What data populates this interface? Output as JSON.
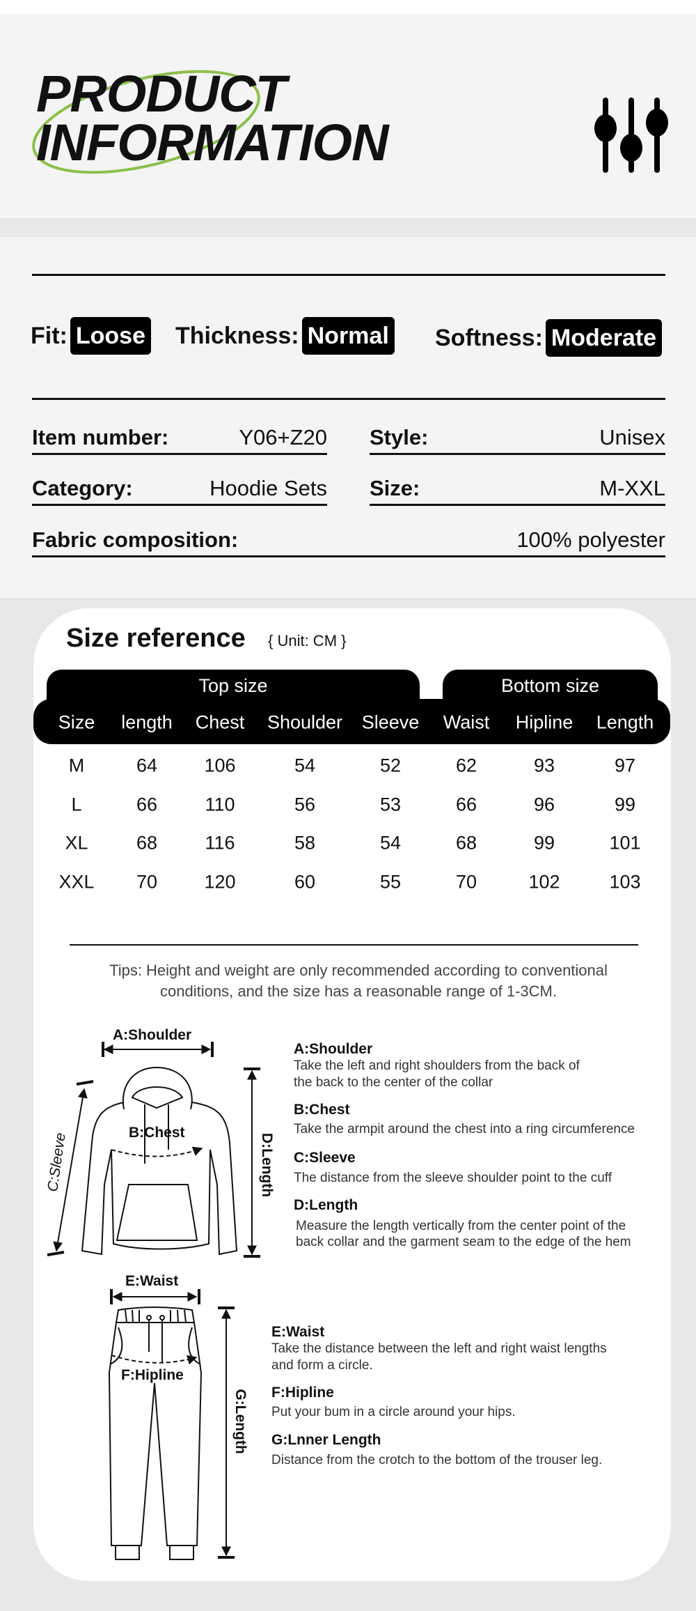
{
  "header": {
    "title_line1": "PRODUCT",
    "title_line2": "INFORMATION",
    "accent_color": "#8cbf4a",
    "icon": "sliders-icon"
  },
  "attributes": [
    {
      "label": "Fit:",
      "value": "Loose"
    },
    {
      "label": "Thickness:",
      "value": "Normal"
    },
    {
      "label": "Softness:",
      "value": "Moderate"
    }
  ],
  "details": {
    "item_number": {
      "label": "Item number:",
      "value": "Y06+Z20"
    },
    "style": {
      "label": "Style:",
      "value": "Unisex"
    },
    "category": {
      "label": "Category:",
      "value": "Hoodie Sets"
    },
    "size": {
      "label": "Size:",
      "value": "M-XXL"
    },
    "fabric": {
      "label": "Fabric composition:",
      "value": "100% polyester"
    }
  },
  "size_reference": {
    "title": "Size reference",
    "unit": "{ Unit: CM }",
    "top_group": "Top size",
    "bottom_group": "Bottom size",
    "columns": [
      "Size",
      "length",
      "Chest",
      "Shoulder",
      "Sleeve",
      "Waist",
      "Hipline",
      "Length"
    ],
    "rows": [
      [
        "M",
        "64",
        "106",
        "54",
        "52",
        "62",
        "93",
        "97"
      ],
      [
        "L",
        "66",
        "110",
        "56",
        "53",
        "66",
        "96",
        "99"
      ],
      [
        "XL",
        "68",
        "116",
        "58",
        "54",
        "68",
        "99",
        "101"
      ],
      [
        "XXL",
        "70",
        "120",
        "60",
        "55",
        "70",
        "102",
        "103"
      ]
    ],
    "tips_line1": "Tips: Height and weight are only recommended according to conventional",
    "tips_line2": "conditions, and the size has a reasonable range of 1-3CM."
  },
  "diagram": {
    "labels": {
      "a": "A:Shoulder",
      "b": "B:Chest",
      "c": "C:Sleeve",
      "d": "D:Length",
      "e": "E:Waist",
      "f": "F:Hipline",
      "g": "G:Length"
    },
    "top": [
      {
        "title": "A:Shoulder",
        "lines": [
          "Take the left and right shoulders from the back of",
          "the back to the center of the collar"
        ]
      },
      {
        "title": "B:Chest",
        "lines": [
          "Take the armpit around the chest into a ring circumference"
        ]
      },
      {
        "title": "C:Sleeve",
        "lines": [
          "The distance from the sleeve shoulder point to the cuff"
        ]
      },
      {
        "title": "D:Length",
        "lines": [
          "Measure the length vertically from the center point of the",
          "back collar and the garment seam to the edge of the hem"
        ]
      }
    ],
    "bottom": [
      {
        "title": "E:Waist",
        "lines": [
          "Take the distance between the left and right waist lengths",
          "and form a circle."
        ]
      },
      {
        "title": "F:Hipline",
        "lines": [
          "Put your bum in a circle around your hips."
        ]
      },
      {
        "title": "G:Lnner Length",
        "lines": [
          "Distance from the crotch to the bottom of the trouser leg."
        ]
      }
    ]
  }
}
